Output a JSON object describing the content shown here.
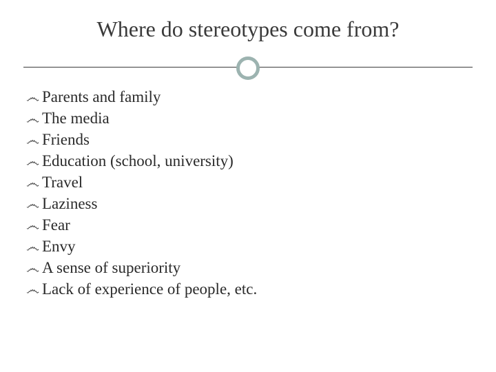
{
  "slide": {
    "title": "Where do stereotypes come from?",
    "title_fontsize": 32,
    "title_color": "#3a3a3a",
    "background_color": "#ffffff",
    "outer_background": "#9cb3b0",
    "divider": {
      "line_color": "#3a3a3a",
      "circle_border_color": "#9cb3b0",
      "circle_border_width": 5,
      "circle_diameter": 34
    },
    "bullet_glyph": "෴",
    "items": [
      "Parents and family",
      "The media",
      "Friends",
      "Education (school, university)",
      "Travel",
      "Laziness",
      "Fear",
      "Envy",
      "A sense of superiority",
      "Lack of experience of people, etc."
    ],
    "item_fontsize": 23,
    "item_color": "#2a2a2a"
  }
}
